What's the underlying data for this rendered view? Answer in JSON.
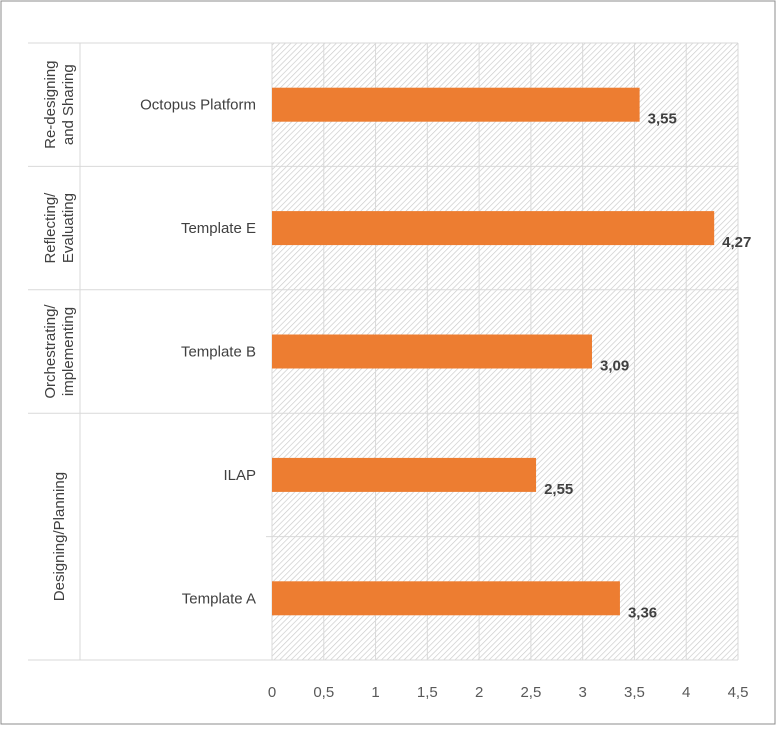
{
  "chart_data": {
    "type": "bar",
    "orientation": "horizontal",
    "categories": [
      "Octopus Platform",
      "Template E",
      "Template B",
      "ILAP",
      "Template A"
    ],
    "groups": [
      {
        "label": [
          "Re-designing",
          "and Sharing"
        ],
        "categories": [
          "Octopus Platform"
        ]
      },
      {
        "label": [
          "Reflecting/",
          "Evaluating"
        ],
        "categories": [
          "Template E"
        ]
      },
      {
        "label": [
          "Orchestrating/",
          "implementing"
        ],
        "categories": [
          "Template B"
        ]
      },
      {
        "label": [
          "Designing/Planning"
        ],
        "categories": [
          "ILAP",
          "Template A"
        ]
      }
    ],
    "values": [
      3.55,
      4.27,
      3.09,
      2.55,
      3.36
    ],
    "value_labels": [
      "3,55",
      "4,27",
      "3,09",
      "2,55",
      "3,36"
    ],
    "xlim": [
      0,
      4.5
    ],
    "xticks": [
      0,
      0.5,
      1,
      1.5,
      2,
      2.5,
      3,
      3.5,
      4,
      4.5
    ],
    "xtick_labels": [
      "0",
      "0,5",
      "1",
      "1,5",
      "2",
      "2,5",
      "3",
      "3,5",
      "4",
      "4,5"
    ],
    "bar_color": "#ED7D31",
    "grid": true,
    "plot_background": "hatched",
    "legend": "none"
  }
}
